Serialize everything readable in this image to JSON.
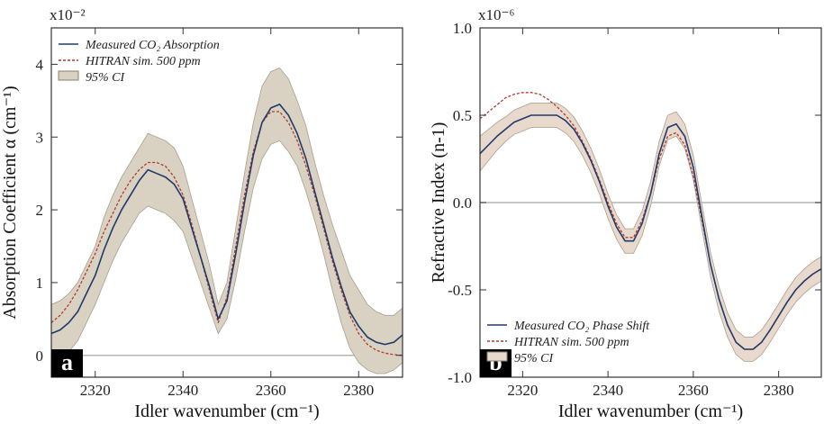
{
  "chart_data": [
    {
      "id": "a",
      "type": "line",
      "panel_label": "a",
      "xlabel": "Idler wavenumber (cm⁻¹)",
      "ylabel": "Absorption Coefficient α (cm⁻¹)",
      "y_scale_label": "x10⁻²",
      "xlim": [
        2310,
        2390
      ],
      "ylim": [
        -0.3,
        4.5
      ],
      "xticks": [
        2320,
        2340,
        2360,
        2380
      ],
      "yticks": [
        0,
        1,
        2,
        3,
        4
      ],
      "zero_line": true,
      "legend_position": "top-left",
      "series": [
        {
          "name": "Measured CO₂ Absorption",
          "style": "solid",
          "color": "#1f3a6b",
          "x": [
            2310,
            2312,
            2314,
            2316,
            2318,
            2320,
            2322,
            2324,
            2326,
            2328,
            2330,
            2332,
            2334,
            2336,
            2338,
            2340,
            2342,
            2344,
            2346,
            2348,
            2350,
            2352,
            2354,
            2356,
            2358,
            2360,
            2362,
            2364,
            2366,
            2368,
            2370,
            2372,
            2374,
            2376,
            2378,
            2380,
            2382,
            2384,
            2386,
            2388,
            2390
          ],
          "y": [
            0.3,
            0.35,
            0.45,
            0.6,
            0.85,
            1.1,
            1.45,
            1.75,
            2.0,
            2.2,
            2.4,
            2.55,
            2.5,
            2.45,
            2.35,
            2.15,
            1.75,
            1.35,
            0.95,
            0.5,
            0.75,
            1.4,
            2.1,
            2.75,
            3.2,
            3.4,
            3.45,
            3.3,
            3.05,
            2.7,
            2.25,
            1.8,
            1.35,
            0.95,
            0.6,
            0.4,
            0.25,
            0.18,
            0.15,
            0.18,
            0.28
          ]
        },
        {
          "name": "HITRAN sim. 500 ppm",
          "style": "dashed",
          "color": "#b03a2e",
          "x": [
            2310,
            2312,
            2314,
            2316,
            2318,
            2320,
            2322,
            2324,
            2326,
            2328,
            2330,
            2332,
            2334,
            2336,
            2338,
            2340,
            2342,
            2344,
            2346,
            2348,
            2350,
            2352,
            2354,
            2356,
            2358,
            2360,
            2362,
            2364,
            2366,
            2368,
            2370,
            2372,
            2374,
            2376,
            2378,
            2380,
            2382,
            2384,
            2386,
            2388,
            2390
          ],
          "y": [
            0.45,
            0.55,
            0.7,
            0.9,
            1.15,
            1.4,
            1.7,
            1.95,
            2.2,
            2.4,
            2.55,
            2.65,
            2.65,
            2.6,
            2.45,
            2.2,
            1.8,
            1.35,
            0.9,
            0.45,
            0.8,
            1.5,
            2.2,
            2.8,
            3.2,
            3.35,
            3.35,
            3.2,
            2.95,
            2.6,
            2.2,
            1.75,
            1.3,
            0.9,
            0.55,
            0.3,
            0.15,
            0.07,
            0.03,
            0.01,
            0.0
          ]
        },
        {
          "name": "95% CI",
          "style": "band",
          "color": "#d9d1c1",
          "x": [
            2310,
            2312,
            2314,
            2316,
            2318,
            2320,
            2322,
            2324,
            2326,
            2328,
            2330,
            2332,
            2334,
            2336,
            2338,
            2340,
            2342,
            2344,
            2346,
            2348,
            2350,
            2352,
            2354,
            2356,
            2358,
            2360,
            2362,
            2364,
            2366,
            2368,
            2370,
            2372,
            2374,
            2376,
            2378,
            2380,
            2382,
            2384,
            2386,
            2388,
            2390
          ],
          "lower": [
            -0.1,
            -0.05,
            0.05,
            0.2,
            0.45,
            0.7,
            1.0,
            1.3,
            1.55,
            1.75,
            1.95,
            2.05,
            2.0,
            1.95,
            1.85,
            1.7,
            1.35,
            1.0,
            0.65,
            0.3,
            0.5,
            1.05,
            1.7,
            2.3,
            2.7,
            2.9,
            2.95,
            2.8,
            2.6,
            2.25,
            1.85,
            1.4,
            0.9,
            0.45,
            0.1,
            -0.1,
            -0.2,
            -0.25,
            -0.25,
            -0.2,
            -0.1
          ],
          "upper": [
            0.7,
            0.75,
            0.85,
            1.0,
            1.25,
            1.5,
            1.9,
            2.2,
            2.45,
            2.65,
            2.85,
            3.05,
            3.0,
            2.95,
            2.85,
            2.6,
            2.15,
            1.7,
            1.25,
            0.7,
            1.0,
            1.75,
            2.5,
            3.2,
            3.7,
            3.9,
            3.95,
            3.8,
            3.5,
            3.15,
            2.65,
            2.2,
            1.8,
            1.45,
            1.1,
            0.9,
            0.7,
            0.6,
            0.55,
            0.55,
            0.65
          ]
        }
      ]
    },
    {
      "id": "b",
      "type": "line",
      "panel_label": "b",
      "xlabel": "Idler wavenumber (cm⁻¹)",
      "ylabel": "Refractive Index (n-1)",
      "y_scale_label": "x10⁻⁶",
      "xlim": [
        2310,
        2390
      ],
      "ylim": [
        -1.0,
        1.0
      ],
      "xticks": [
        2320,
        2340,
        2360,
        2380
      ],
      "yticks": [
        -1.0,
        -0.5,
        0.0,
        0.5,
        1.0
      ],
      "ytick_labels": [
        "-1.0",
        "-0.5",
        "0.0",
        "0.5",
        "1.0"
      ],
      "zero_line": true,
      "legend_position": "bottom-left",
      "series": [
        {
          "name": "Measured CO₂ Phase Shift",
          "style": "solid",
          "color": "#1f3a6b",
          "x": [
            2310,
            2312,
            2314,
            2316,
            2318,
            2320,
            2322,
            2324,
            2326,
            2328,
            2330,
            2332,
            2334,
            2336,
            2338,
            2340,
            2342,
            2344,
            2346,
            2348,
            2350,
            2352,
            2354,
            2356,
            2358,
            2360,
            2362,
            2364,
            2366,
            2368,
            2370,
            2372,
            2374,
            2376,
            2378,
            2380,
            2382,
            2384,
            2386,
            2388,
            2390
          ],
          "y": [
            0.28,
            0.33,
            0.38,
            0.42,
            0.46,
            0.48,
            0.5,
            0.5,
            0.5,
            0.5,
            0.47,
            0.42,
            0.34,
            0.24,
            0.12,
            -0.02,
            -0.14,
            -0.22,
            -0.22,
            -0.12,
            0.05,
            0.28,
            0.43,
            0.45,
            0.38,
            0.2,
            -0.08,
            -0.35,
            -0.55,
            -0.7,
            -0.8,
            -0.84,
            -0.84,
            -0.8,
            -0.73,
            -0.65,
            -0.57,
            -0.5,
            -0.45,
            -0.41,
            -0.38
          ]
        },
        {
          "name": "HITRAN sim. 500 ppm",
          "style": "dashed",
          "color": "#b03a2e",
          "x": [
            2310,
            2312,
            2314,
            2316,
            2318,
            2320,
            2322,
            2324,
            2326,
            2328,
            2330,
            2332,
            2334,
            2336,
            2338,
            2340,
            2342,
            2344,
            2346,
            2348,
            2350,
            2352,
            2354,
            2356,
            2358,
            2360,
            2362,
            2364,
            2366,
            2368,
            2370,
            2372,
            2374,
            2376,
            2378,
            2380,
            2382,
            2384,
            2386,
            2388,
            2390
          ],
          "y": [
            0.48,
            0.52,
            0.56,
            0.6,
            0.62,
            0.63,
            0.63,
            0.62,
            0.59,
            0.55,
            0.5,
            0.44,
            0.35,
            0.25,
            0.13,
            0.0,
            -0.12,
            -0.2,
            -0.2,
            -0.1,
            0.05,
            0.25,
            0.38,
            0.4,
            0.33,
            0.15,
            -0.1,
            -0.35,
            -0.55,
            -0.7,
            -0.8,
            -0.84,
            -0.84,
            -0.8,
            -0.73,
            -0.65,
            -0.57,
            -0.5,
            -0.45,
            -0.41,
            -0.38
          ]
        },
        {
          "name": "95% CI",
          "style": "band",
          "color": "#e8d9cc",
          "x": [
            2310,
            2312,
            2314,
            2316,
            2318,
            2320,
            2322,
            2324,
            2326,
            2328,
            2330,
            2332,
            2334,
            2336,
            2338,
            2340,
            2342,
            2344,
            2346,
            2348,
            2350,
            2352,
            2354,
            2356,
            2358,
            2360,
            2362,
            2364,
            2366,
            2368,
            2370,
            2372,
            2374,
            2376,
            2378,
            2380,
            2382,
            2384,
            2386,
            2388,
            2390
          ],
          "lower": [
            0.18,
            0.24,
            0.3,
            0.35,
            0.39,
            0.41,
            0.43,
            0.43,
            0.43,
            0.43,
            0.4,
            0.35,
            0.27,
            0.17,
            0.05,
            -0.09,
            -0.21,
            -0.29,
            -0.29,
            -0.19,
            -0.02,
            0.21,
            0.36,
            0.38,
            0.31,
            0.13,
            -0.15,
            -0.42,
            -0.62,
            -0.77,
            -0.87,
            -0.91,
            -0.91,
            -0.87,
            -0.8,
            -0.72,
            -0.64,
            -0.57,
            -0.52,
            -0.48,
            -0.45
          ],
          "upper": [
            0.38,
            0.42,
            0.46,
            0.49,
            0.53,
            0.55,
            0.57,
            0.57,
            0.57,
            0.57,
            0.54,
            0.49,
            0.41,
            0.31,
            0.19,
            0.05,
            -0.07,
            -0.15,
            -0.15,
            -0.05,
            0.12,
            0.35,
            0.5,
            0.52,
            0.45,
            0.27,
            -0.01,
            -0.28,
            -0.48,
            -0.63,
            -0.73,
            -0.77,
            -0.77,
            -0.73,
            -0.66,
            -0.58,
            -0.5,
            -0.43,
            -0.38,
            -0.34,
            -0.31
          ]
        }
      ]
    }
  ]
}
